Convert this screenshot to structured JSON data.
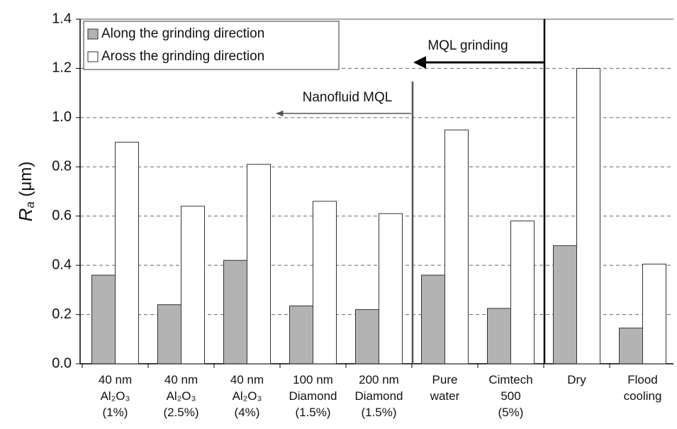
{
  "chart_data": {
    "type": "bar",
    "y_label_symbol": "R",
    "y_label_subscript": "a",
    "y_label_unit": "(μm)",
    "categories": [
      "40 nm\nAl₂O₃\n(1%)",
      "40 nm\nAl₂O₃\n(2.5%)",
      "40 nm\nAl₂O₃\n(4%)",
      "100 nm\nDiamond\n(1.5%)",
      "200 nm\nDiamond\n(1.5%)",
      "Pure\nwater",
      "Cimtech\n500\n(5%)",
      "Dry",
      "Flood\ncooling"
    ],
    "series": [
      {
        "name": "Along the grinding direction",
        "color": "#b3b3b3",
        "values": [
          0.36,
          0.24,
          0.42,
          0.235,
          0.22,
          0.36,
          0.225,
          0.48,
          0.145
        ]
      },
      {
        "name": "Aross the grinding direction",
        "color": "#ffffff",
        "values": [
          0.9,
          0.64,
          0.81,
          0.66,
          0.61,
          0.95,
          0.58,
          1.2,
          0.405
        ]
      }
    ],
    "ylim": [
      0,
      1.4
    ],
    "yticks": [
      {
        "value": 0,
        "label": "0.0"
      },
      {
        "value": 0.2,
        "label": "0.2"
      },
      {
        "value": 0.4,
        "label": "0.4"
      },
      {
        "value": 0.6,
        "label": "0.6"
      },
      {
        "value": 0.8,
        "label": "0.8"
      },
      {
        "value": 1,
        "label": "1.0"
      },
      {
        "value": 1.2,
        "label": "1.2"
      },
      {
        "value": 1.4,
        "label": "1.4"
      }
    ],
    "grid": true,
    "legend": "upper left",
    "annotations": [
      "MQL grinding",
      "Nanofluid MQL"
    ]
  }
}
